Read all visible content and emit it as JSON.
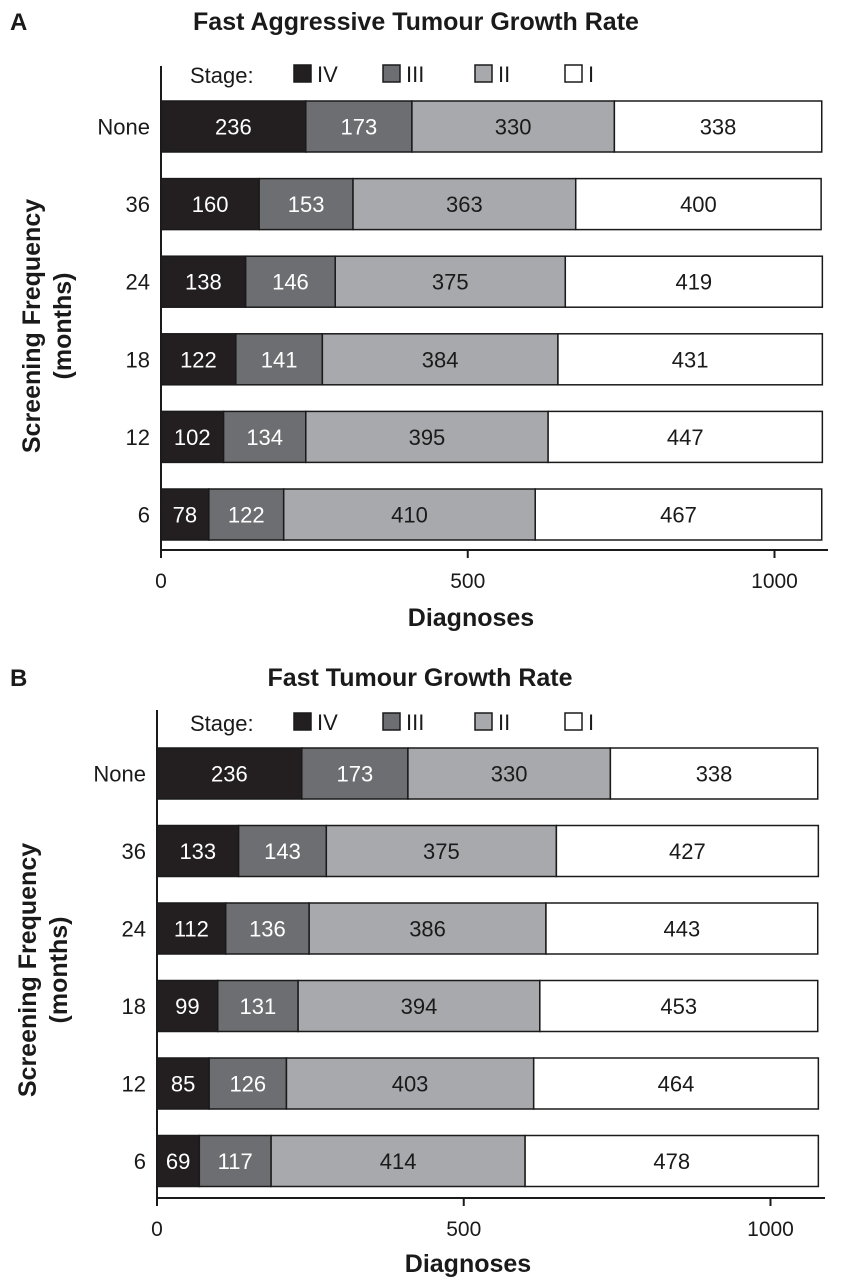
{
  "chart_data": [
    {
      "type": "bar",
      "orientation": "horizontal",
      "stacked": true,
      "panel": "A",
      "title": "Fast Aggressive Tumour Growth Rate",
      "xlabel": "Diagnoses",
      "ylabel": [
        "Screening Frequency",
        "(months)"
      ],
      "xlim": [
        0,
        1090
      ],
      "xticks": [
        "0",
        "500",
        "1000"
      ],
      "xtick_values": [
        0,
        500,
        1000
      ],
      "legend": {
        "title": "Stage:",
        "placement": "top"
      },
      "categories": [
        "None",
        "36",
        "24",
        "18",
        "12",
        "6"
      ],
      "series": [
        {
          "name": "IV",
          "color": "#231f20",
          "label_color": "#ffffff",
          "values": [
            236,
            160,
            138,
            122,
            102,
            78
          ]
        },
        {
          "name": "III",
          "color": "#6d6e71",
          "label_color": "#ffffff",
          "values": [
            173,
            153,
            146,
            141,
            134,
            122
          ]
        },
        {
          "name": "II",
          "color": "#a7a9ac",
          "label_color": "#1a1a1a",
          "values": [
            330,
            363,
            375,
            384,
            395,
            410
          ]
        },
        {
          "name": "I",
          "color": "#ffffff",
          "label_color": "#1a1a1a",
          "values": [
            338,
            400,
            419,
            431,
            447,
            467
          ]
        }
      ]
    },
    {
      "type": "bar",
      "orientation": "horizontal",
      "stacked": true,
      "panel": "B",
      "title": "Fast Tumour Growth Rate",
      "xlabel": "Diagnoses",
      "ylabel": [
        "Screening Frequency",
        "(months)"
      ],
      "xlim": [
        0,
        1090
      ],
      "xticks": [
        "0",
        "500",
        "1000"
      ],
      "xtick_values": [
        0,
        500,
        1000
      ],
      "legend": {
        "title": "Stage:",
        "placement": "top"
      },
      "categories": [
        "None",
        "36",
        "24",
        "18",
        "12",
        "6"
      ],
      "series": [
        {
          "name": "IV",
          "color": "#231f20",
          "label_color": "#ffffff",
          "values": [
            236,
            133,
            112,
            99,
            85,
            69
          ]
        },
        {
          "name": "III",
          "color": "#6d6e71",
          "label_color": "#ffffff",
          "values": [
            173,
            143,
            136,
            131,
            126,
            117
          ]
        },
        {
          "name": "II",
          "color": "#a7a9ac",
          "label_color": "#1a1a1a",
          "values": [
            330,
            375,
            386,
            394,
            403,
            414
          ]
        },
        {
          "name": "I",
          "color": "#ffffff",
          "label_color": "#1a1a1a",
          "values": [
            338,
            427,
            443,
            453,
            464,
            478
          ]
        }
      ]
    }
  ]
}
